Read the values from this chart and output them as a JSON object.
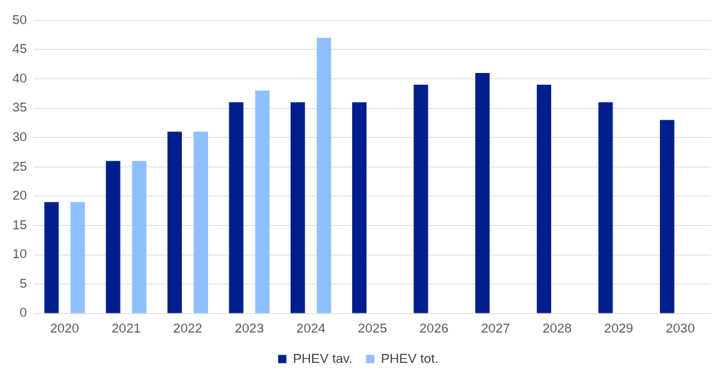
{
  "chart_data": {
    "type": "bar",
    "categories": [
      "2020",
      "2021",
      "2022",
      "2023",
      "2024",
      "2025",
      "2026",
      "2027",
      "2028",
      "2029",
      "2030"
    ],
    "series": [
      {
        "name": "PHEV tav.",
        "color": "#001f8c",
        "values": [
          19,
          26,
          31,
          36,
          36,
          36,
          39,
          41,
          39,
          36,
          33
        ]
      },
      {
        "name": "PHEV tot.",
        "color": "#8fbfff",
        "values": [
          19,
          26,
          31,
          38,
          47,
          null,
          null,
          null,
          null,
          null,
          null
        ]
      }
    ],
    "ylim": [
      0,
      50
    ],
    "yticks": [
      0,
      5,
      10,
      15,
      20,
      25,
      30,
      35,
      40,
      45,
      50
    ],
    "grid": "y",
    "legend": "bottom"
  }
}
